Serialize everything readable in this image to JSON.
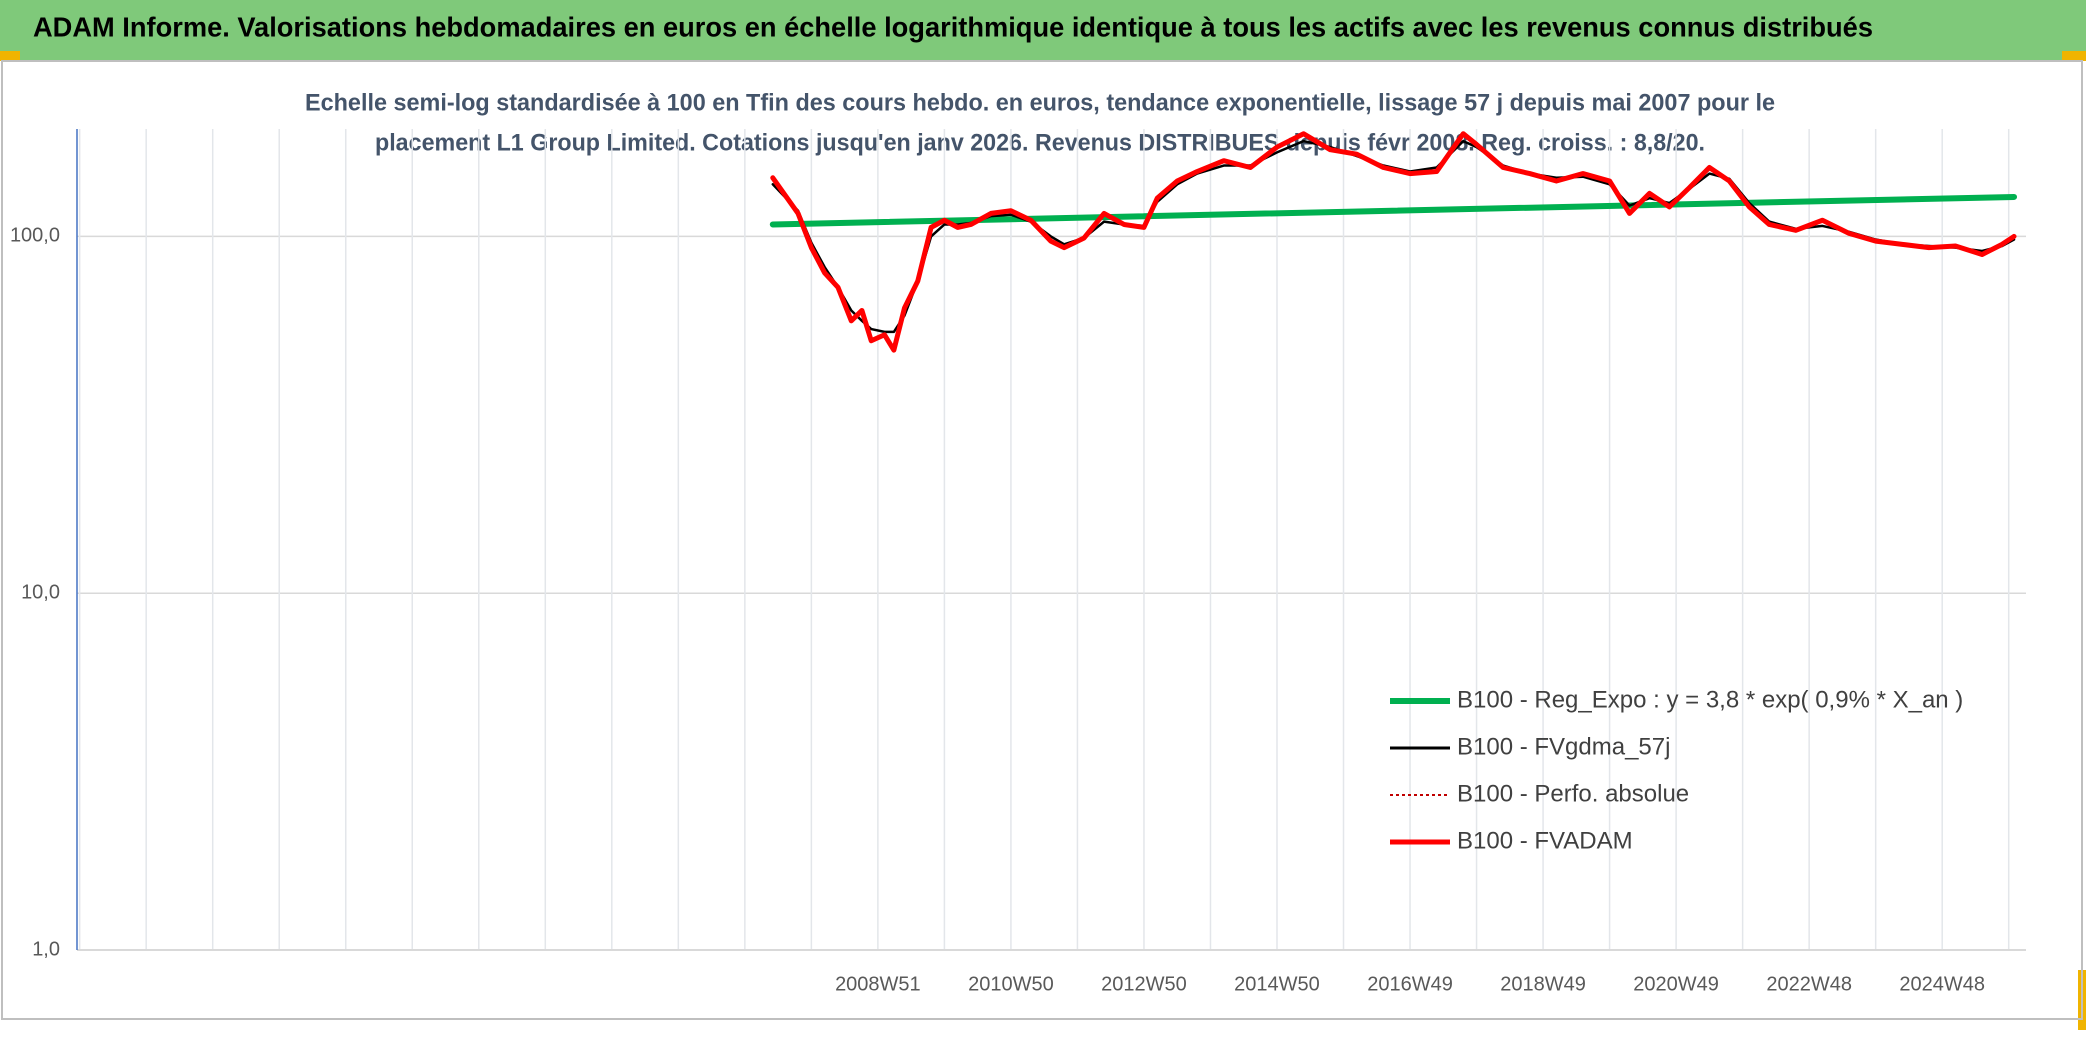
{
  "chart_data": {
    "type": "line",
    "title": "ADAM Informe. Valorisations hebdomadaires en euros en échelle logarithmique identique à tous les actifs avec les revenus connus distribués",
    "subtitle": [
      "Echelle semi-log standardisée à 100 en Tfin des cours hebdo. en euros, tendance exponentielle, lissage 57 j depuis mai 2007 pour le",
      "placement L1 Group Limited. Cotations jusqu'en janv 2026. Revenus DISTRIBUES depuis févr 2008. Reg. croiss. : 8,8/20."
    ],
    "yscale": "log",
    "ylim": [
      1,
      200
    ],
    "yticks": [
      {
        "value": 1,
        "label": "1,0"
      },
      {
        "value": 10,
        "label": "10,0"
      },
      {
        "value": 100,
        "label": "100,0"
      }
    ],
    "xlim": [
      1996.93,
      2026.23
    ],
    "xticks": [
      {
        "value": 2008.97,
        "label": "2008W51"
      },
      {
        "value": 2010.97,
        "label": "2010W50"
      },
      {
        "value": 2012.97,
        "label": "2012W50"
      },
      {
        "value": 2014.97,
        "label": "2014W50"
      },
      {
        "value": 2016.97,
        "label": "2016W49"
      },
      {
        "value": 2018.97,
        "label": "2018W49"
      },
      {
        "value": 2020.97,
        "label": "2020W49"
      },
      {
        "value": 2022.97,
        "label": "2022W48"
      },
      {
        "value": 2024.97,
        "label": "2024W48"
      }
    ],
    "grid": true,
    "legend": "lower right",
    "x": [
      2007.39,
      2007.77,
      2007.97,
      2008.17,
      2008.37,
      2008.57,
      2008.73,
      2008.87,
      2009.07,
      2009.21,
      2009.37,
      2009.57,
      2009.77,
      2009.97,
      2010.17,
      2010.37,
      2010.67,
      2010.97,
      2011.27,
      2011.57,
      2011.77,
      2012.07,
      2012.37,
      2012.67,
      2012.97,
      2013.17,
      2013.47,
      2013.77,
      2014.17,
      2014.57,
      2014.97,
      2015.37,
      2015.77,
      2016.17,
      2016.57,
      2016.97,
      2017.37,
      2017.77,
      2017.97,
      2018.37,
      2018.77,
      2019.17,
      2019.57,
      2019.97,
      2020.27,
      2020.57,
      2020.87,
      2021.17,
      2021.47,
      2021.77,
      2022.07,
      2022.37,
      2022.77,
      2023.17,
      2023.57,
      2023.97,
      2024.37,
      2024.77,
      2025.17,
      2025.57,
      2025.87,
      2026.05
    ],
    "series": [
      {
        "name": "B100 - Reg_Expo : y = 3,8 * exp( 0,9% *  X_an )",
        "color": "#00b050",
        "width": 6,
        "x": [
          2007.39,
          2026.05
        ],
        "values": [
          108,
          129
        ]
      },
      {
        "name": "B100 - FVgdma_57j",
        "color": "#000000",
        "width": 2.5,
        "values": [
          140,
          118,
          96,
          82,
          72,
          62,
          58,
          55,
          54,
          54,
          60,
          75,
          100,
          108,
          108,
          109,
          114,
          115,
          110,
          100,
          95,
          99,
          110,
          108,
          107,
          125,
          140,
          150,
          158,
          158,
          172,
          185,
          178,
          168,
          158,
          152,
          156,
          185,
          178,
          158,
          150,
          146,
          147,
          140,
          122,
          128,
          124,
          136,
          150,
          145,
          124,
          110,
          105,
          107,
          103,
          98,
          95,
          94,
          93,
          91,
          94,
          98
        ]
      },
      {
        "name": "B100 - Perfo. absolue",
        "color": "#c00000",
        "width": 1.5,
        "dash": true,
        "values": [
          146,
          116,
          93,
          79,
          72,
          58,
          62,
          51,
          53,
          48,
          63,
          75,
          106,
          111,
          106,
          108,
          116,
          118,
          111,
          97,
          93,
          99,
          116,
          108,
          106,
          128,
          143,
          152,
          163,
          156,
          178,
          194,
          175,
          170,
          156,
          150,
          152,
          194,
          181,
          156,
          150,
          143,
          150,
          143,
          116,
          132,
          121,
          137,
          156,
          143,
          121,
          108,
          104,
          111,
          102,
          97,
          95,
          93,
          94,
          89,
          95,
          100
        ]
      },
      {
        "name": "B100 - FVADAM",
        "color": "#ff0000",
        "width": 5,
        "values": [
          146,
          116,
          93,
          79,
          72,
          58,
          62,
          51,
          53,
          48,
          63,
          75,
          106,
          111,
          106,
          108,
          116,
          118,
          111,
          97,
          93,
          99,
          116,
          108,
          106,
          128,
          143,
          152,
          163,
          156,
          178,
          194,
          175,
          170,
          156,
          150,
          152,
          194,
          181,
          156,
          150,
          143,
          150,
          143,
          116,
          132,
          121,
          137,
          156,
          143,
          121,
          108,
          104,
          111,
          102,
          97,
          95,
          93,
          94,
          89,
          95,
          100
        ]
      }
    ]
  }
}
